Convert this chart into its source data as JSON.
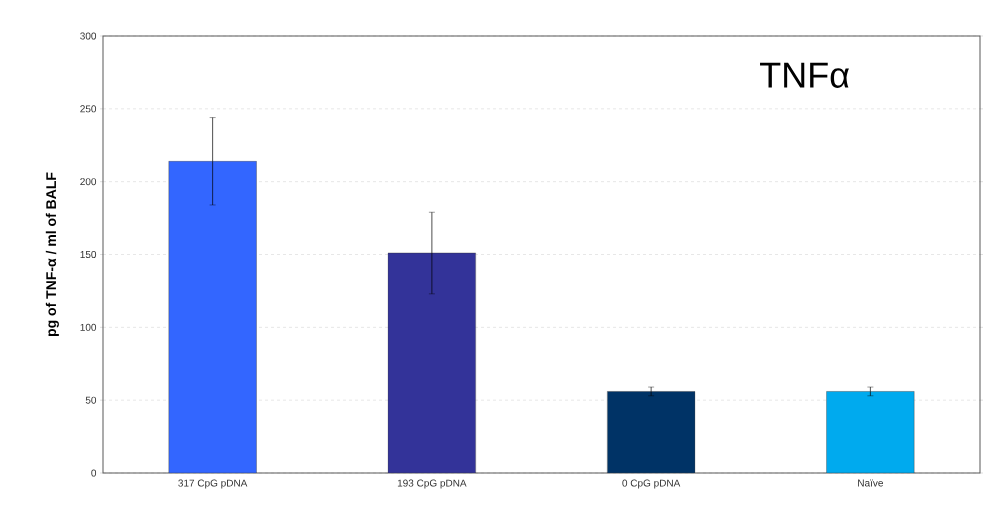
{
  "chart_data": {
    "type": "bar",
    "title": "TNFα",
    "ylabel": "pg of TNF-α / ml of BALF",
    "categories": [
      "317 CpG pDNA",
      "193 CpG pDNA",
      "0 CpG pDNA",
      "Naïve"
    ],
    "values": [
      214,
      151,
      56,
      56
    ],
    "errors": [
      30,
      28,
      3,
      3
    ],
    "colors": [
      "#3366ff",
      "#333399",
      "#003366",
      "#00aaee"
    ],
    "ylim": [
      0,
      300
    ],
    "yticks": [
      0,
      50,
      100,
      150,
      200,
      250,
      300
    ],
    "grid": "y"
  }
}
